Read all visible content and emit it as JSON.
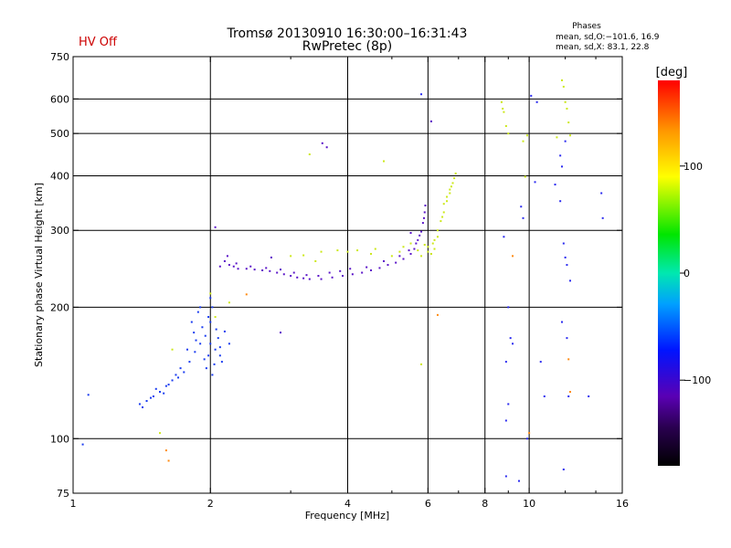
{
  "chart_data": {
    "type": "scatter",
    "title": "Tromsø 20130910 16:30:00–16:31:43",
    "subtitle": "RwPretec (8p)",
    "status": "HV Off",
    "stats": {
      "heading": "Phases",
      "line1": "mean, sd,O:−101.6, 16.9",
      "line2": "mean, sd,X:  83.1, 22.8"
    },
    "xlabel": "Frequency [MHz]",
    "ylabel": "Stationary phase Virtual Height [km]",
    "x_scale": "log",
    "y_scale": "log",
    "xlim": [
      1,
      16
    ],
    "ylim": [
      75,
      750
    ],
    "x_ticks": [
      1,
      2,
      4,
      6,
      8,
      10,
      16
    ],
    "x_tick_labels": [
      "1",
      "2",
      "4",
      "6",
      "8",
      "10",
      "16"
    ],
    "y_ticks": [
      75,
      100,
      200,
      300,
      400,
      500,
      600,
      750
    ],
    "y_tick_labels": [
      "75",
      "100",
      "200",
      "300",
      "400",
      "500",
      "600",
      "750"
    ],
    "x_grid": [
      2,
      4,
      6,
      8,
      10
    ],
    "y_grid": [
      100,
      200,
      300,
      400,
      500,
      600
    ],
    "grid": true,
    "colorbar": {
      "label": "[deg]",
      "min": -180,
      "max": 180,
      "ticks": [
        100,
        0,
        -100
      ],
      "tick_labels": [
        "100",
        "0",
        "−100"
      ]
    },
    "series": [
      {
        "points": [
          [
            1.4,
            120
          ],
          [
            1.45,
            122
          ],
          [
            1.5,
            125
          ],
          [
            1.55,
            128
          ],
          [
            1.6,
            132
          ],
          [
            1.65,
            136
          ],
          [
            1.7,
            138
          ],
          [
            1.75,
            142
          ],
          [
            1.8,
            150
          ],
          [
            1.85,
            158
          ],
          [
            1.9,
            165
          ],
          [
            1.95,
            172
          ],
          [
            2.0,
            165
          ],
          [
            2.05,
            160
          ],
          [
            2.1,
            155
          ],
          [
            1.92,
            180
          ],
          [
            1.98,
            190
          ],
          [
            2.02,
            200
          ],
          [
            1.88,
            195
          ],
          [
            2.08,
            170
          ],
          [
            2.12,
            150
          ],
          [
            1.96,
            145
          ],
          [
            2.04,
            148
          ],
          [
            1.84,
            175
          ],
          [
            1.42,
            118
          ],
          [
            1.52,
            130
          ],
          [
            1.62,
            133
          ],
          [
            1.72,
            145
          ],
          [
            1.78,
            160
          ],
          [
            2.0,
            185
          ],
          [
            2.06,
            178
          ],
          [
            1.94,
            152
          ],
          [
            1.86,
            168
          ],
          [
            2.1,
            162
          ],
          [
            2.15,
            176
          ],
          [
            1.58,
            127
          ],
          [
            1.68,
            140
          ],
          [
            1.82,
            185
          ],
          [
            2.02,
            140
          ],
          [
            1.98,
            155
          ],
          [
            2.2,
            165
          ],
          [
            1.9,
            200
          ],
          [
            2.0,
            210
          ],
          [
            1.48,
            124
          ],
          [
            1.05,
            97
          ],
          [
            1.08,
            126
          ]
        ]
      },
      {
        "points": [
          [
            2.15,
            255
          ],
          [
            2.2,
            250
          ],
          [
            2.25,
            248
          ],
          [
            2.3,
            245
          ],
          [
            2.4,
            245
          ],
          [
            2.5,
            244
          ],
          [
            2.6,
            243
          ],
          [
            2.7,
            242
          ],
          [
            2.8,
            240
          ],
          [
            2.9,
            238
          ],
          [
            3.0,
            236
          ],
          [
            3.1,
            234
          ],
          [
            3.2,
            233
          ],
          [
            3.3,
            232
          ],
          [
            3.5,
            232
          ],
          [
            3.7,
            234
          ],
          [
            3.9,
            236
          ],
          [
            4.1,
            238
          ],
          [
            4.3,
            240
          ],
          [
            4.5,
            243
          ],
          [
            4.7,
            246
          ],
          [
            4.9,
            250
          ],
          [
            5.1,
            253
          ],
          [
            5.3,
            258
          ],
          [
            5.5,
            265
          ],
          [
            5.6,
            272
          ],
          [
            5.7,
            285
          ],
          [
            5.8,
            298
          ],
          [
            5.85,
            312
          ],
          [
            5.9,
            330
          ],
          [
            5.92,
            342
          ],
          [
            2.1,
            248
          ],
          [
            2.18,
            262
          ],
          [
            2.28,
            252
          ],
          [
            2.45,
            248
          ],
          [
            2.65,
            246
          ],
          [
            2.85,
            244
          ],
          [
            3.05,
            240
          ],
          [
            3.25,
            237
          ],
          [
            3.45,
            236
          ],
          [
            3.65,
            240
          ],
          [
            3.85,
            242
          ],
          [
            4.05,
            245
          ],
          [
            4.4,
            247
          ],
          [
            4.8,
            255
          ],
          [
            5.2,
            262
          ],
          [
            5.45,
            270
          ],
          [
            5.65,
            280
          ],
          [
            5.75,
            292
          ],
          [
            5.88,
            320
          ],
          [
            2.72,
            260
          ],
          [
            3.52,
            475
          ],
          [
            3.6,
            465
          ],
          [
            6.1,
            533
          ],
          [
            2.05,
            305
          ],
          [
            2.85,
            175
          ],
          [
            5.5,
            296
          ]
        ]
      },
      {
        "points": [
          [
            3.0,
            262
          ],
          [
            3.2,
            263
          ],
          [
            3.5,
            268
          ],
          [
            3.8,
            270
          ],
          [
            4.0,
            268
          ],
          [
            4.2,
            270
          ],
          [
            4.5,
            265
          ],
          [
            5.0,
            262
          ],
          [
            5.3,
            275
          ],
          [
            5.5,
            280
          ],
          [
            5.7,
            270
          ],
          [
            6.0,
            268
          ],
          [
            6.2,
            285
          ],
          [
            6.3,
            300
          ],
          [
            6.4,
            315
          ],
          [
            6.5,
            330
          ],
          [
            6.6,
            350
          ],
          [
            6.7,
            365
          ],
          [
            6.8,
            385
          ],
          [
            6.9,
            405
          ],
          [
            6.2,
            272
          ],
          [
            6.1,
            265
          ],
          [
            5.9,
            278
          ],
          [
            6.3,
            290
          ],
          [
            6.5,
            345
          ],
          [
            6.7,
            372
          ],
          [
            3.4,
            255
          ],
          [
            4.6,
            272
          ],
          [
            5.2,
            268
          ],
          [
            5.8,
            262
          ],
          [
            6.0,
            275
          ],
          [
            6.15,
            280
          ],
          [
            6.45,
            322
          ],
          [
            6.6,
            358
          ],
          [
            6.75,
            378
          ],
          [
            6.85,
            395
          ],
          [
            3.3,
            448
          ],
          [
            4.8,
            432
          ],
          [
            8.7,
            590
          ],
          [
            8.75,
            570
          ],
          [
            8.8,
            560
          ],
          [
            9.9,
            495
          ],
          [
            9.7,
            480
          ],
          [
            11.8,
            662
          ],
          [
            11.9,
            640
          ],
          [
            12.0,
            590
          ],
          [
            12.1,
            570
          ],
          [
            12.3,
            495
          ],
          [
            8.9,
            520
          ],
          [
            9.0,
            500
          ],
          [
            2.0,
            215
          ],
          [
            2.2,
            205
          ],
          [
            1.55,
            103
          ],
          [
            1.65,
            160
          ],
          [
            2.05,
            190
          ],
          [
            5.8,
            148
          ],
          [
            9.8,
            398
          ],
          [
            11.5,
            490
          ],
          [
            12.2,
            530
          ]
        ]
      },
      {
        "points": [
          [
            5.8,
            615
          ],
          [
            10.3,
            387
          ],
          [
            11.4,
            382
          ],
          [
            11.7,
            350
          ],
          [
            11.8,
            420
          ],
          [
            11.9,
            280
          ],
          [
            12.0,
            260
          ],
          [
            12.1,
            250
          ],
          [
            12.3,
            230
          ],
          [
            11.8,
            185
          ],
          [
            12.1,
            170
          ],
          [
            12.2,
            125
          ],
          [
            9.0,
            200
          ],
          [
            9.1,
            170
          ],
          [
            9.2,
            165
          ],
          [
            8.9,
            150
          ],
          [
            9.0,
            120
          ],
          [
            8.9,
            110
          ],
          [
            8.8,
            290
          ],
          [
            9.6,
            340
          ],
          [
            9.7,
            320
          ],
          [
            10.6,
            150
          ],
          [
            10.8,
            125
          ],
          [
            14.4,
            365
          ],
          [
            14.5,
            320
          ],
          [
            13.5,
            125
          ],
          [
            9.5,
            80
          ],
          [
            8.9,
            82
          ],
          [
            11.9,
            85
          ],
          [
            10.1,
            610
          ],
          [
            10.4,
            590
          ],
          [
            12.0,
            480
          ],
          [
            11.7,
            445
          ],
          [
            9.9,
            100
          ]
        ]
      },
      {
        "points": [
          [
            1.6,
            94
          ],
          [
            1.62,
            89
          ],
          [
            10.0,
            103
          ],
          [
            9.2,
            262
          ],
          [
            6.3,
            192
          ],
          [
            12.3,
            128
          ],
          [
            2.4,
            214
          ],
          [
            12.2,
            152
          ]
        ]
      }
    ]
  }
}
